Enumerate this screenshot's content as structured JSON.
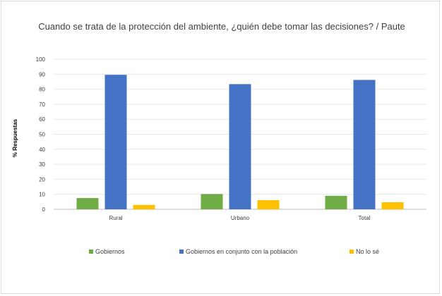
{
  "chart_data": {
    "type": "bar",
    "title": "Cuando se trata de la protección del ambiente, ¿quién debe tomar las decisiones? / Paute",
    "ylabel": "% Respuestas",
    "xlabel": "",
    "categories": [
      "Rural",
      "Urbano",
      "Total"
    ],
    "series": [
      {
        "name": "Gobiernos",
        "color": "#70ad47",
        "values": [
          7.5,
          10.2,
          9.0
        ]
      },
      {
        "name": "Gobiernos en conjunto con la población",
        "color": "#4472c4",
        "values": [
          89.6,
          83.4,
          86.2
        ]
      },
      {
        "name": "No lo sé",
        "color": "#ffc000",
        "values": [
          2.9,
          6.1,
          4.7
        ]
      }
    ],
    "ylim": [
      0,
      100
    ],
    "yticks": [
      0,
      10,
      20,
      30,
      40,
      50,
      60,
      70,
      80,
      90,
      100
    ],
    "grid": true,
    "legend_position": "bottom"
  }
}
